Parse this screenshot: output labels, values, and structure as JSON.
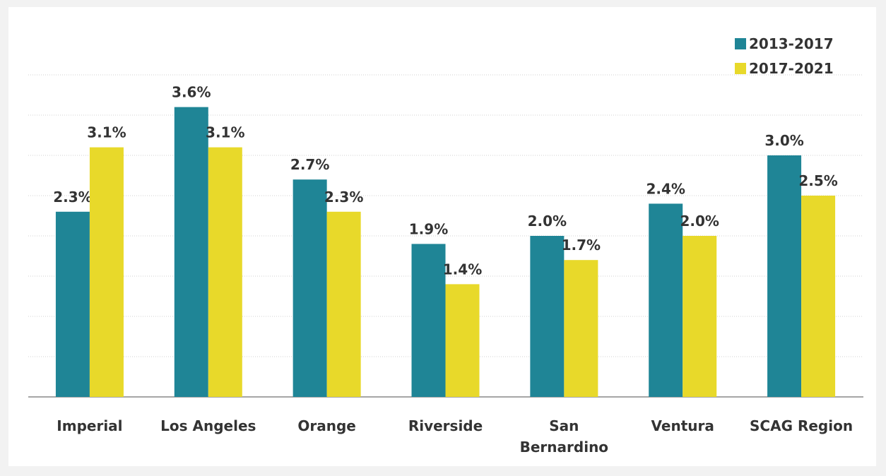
{
  "chart_data": {
    "type": "bar",
    "categories": [
      "Imperial",
      "Los Angeles",
      "Orange",
      "Riverside",
      "San\nBernardino",
      "Ventura",
      "SCAG Region"
    ],
    "series": [
      {
        "name": "2013-2017",
        "color": "#1f8596",
        "values": [
          2.3,
          3.6,
          2.7,
          1.9,
          2.0,
          2.4,
          3.0
        ],
        "value_labels": [
          "2.3%",
          "3.6%",
          "2.7%",
          "1.9%",
          "2.0%",
          "2.4%",
          "3.0%"
        ]
      },
      {
        "name": "2017-2021",
        "color": "#e8d92a",
        "values": [
          3.1,
          3.1,
          2.3,
          1.4,
          1.7,
          2.0,
          2.5
        ],
        "value_labels": [
          "3.1%",
          "3.1%",
          "2.3%",
          "1.4%",
          "1.7%",
          "2.0%",
          "2.5%"
        ]
      }
    ],
    "ylim": [
      0,
      4
    ],
    "yticks": [
      0,
      0.5,
      1,
      1.5,
      2,
      2.5,
      3,
      3.5,
      4
    ],
    "grid": true,
    "legend": "upper right"
  }
}
